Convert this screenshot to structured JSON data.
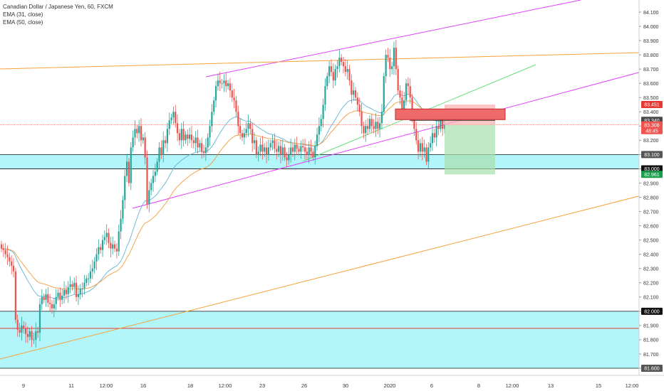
{
  "legend": {
    "symbol": "Canadian Dollar / Japanese Yen, 60, FXCM",
    "ema_fast": "EMA (31, close)",
    "ema_slow": "EMA (50, close)"
  },
  "chart_data": {
    "type": "candlestick",
    "ylim": [
      81.6,
      84.15
    ],
    "y_ticks": [
      "84.100",
      "84.000",
      "83.900",
      "83.800",
      "83.700",
      "83.600",
      "83.500",
      "83.400",
      "83.300",
      "83.200",
      "83.100",
      "83.000",
      "82.900",
      "82.800",
      "82.700",
      "82.600",
      "82.500",
      "82.400",
      "82.300",
      "82.200",
      "82.100",
      "82.000",
      "81.900",
      "81.800",
      "81.700",
      "81.600"
    ],
    "x_ticks": [
      "9",
      "11",
      "12:00",
      "16",
      "18",
      "12:00",
      "23",
      "26",
      "30",
      "2020",
      "6",
      "8",
      "12:00",
      "13",
      "15",
      "12:00"
    ],
    "price_badges": [
      {
        "label": "83.451",
        "value": 83.451,
        "color": "#e53935",
        "text_color": "#ffffff"
      },
      {
        "label": "83.340",
        "value": 83.34,
        "color": "#4a4a4a",
        "text_color": "#ffffff"
      },
      {
        "label": "83.308",
        "value": 83.308,
        "color": "#ef5350",
        "text_color": "#ffffff"
      },
      {
        "label": "48:45",
        "value": 83.268,
        "color": "#ef5350",
        "text_color": "#ffffff"
      },
      {
        "label": "83.100",
        "value": 83.1,
        "color": "#555555",
        "text_color": "#ffffff"
      },
      {
        "label": "83.000",
        "value": 83.0,
        "color": "#111111",
        "text_color": "#ffffff"
      },
      {
        "label": "82.961",
        "value": 82.961,
        "color": "#1b9e4b",
        "text_color": "#ffffff"
      },
      {
        "label": "82.000",
        "value": 82.0,
        "color": "#111111",
        "text_color": "#ffffff"
      },
      {
        "label": "81.600",
        "value": 81.6,
        "color": "#555555",
        "text_color": "#ffffff"
      }
    ],
    "zones": [
      {
        "from": 83.0,
        "to": 83.1,
        "color": "#b2f5fb"
      },
      {
        "from": 81.6,
        "to": 82.0,
        "color": "#b2f5fb"
      }
    ],
    "colors": {
      "up": "#26a69a",
      "down": "#ef5350",
      "ema_fast": "#5fb4d6",
      "ema_slow": "#f59b3c",
      "channel": "#e040fb",
      "orange_line": "#f7a23b",
      "green_line": "#66e07a"
    },
    "candle_closes": [
      82.44,
      82.43,
      82.4,
      82.38,
      82.35,
      82.32,
      82.28,
      81.94,
      81.87,
      81.85,
      81.9,
      81.88,
      81.84,
      81.82,
      81.86,
      81.8,
      81.8,
      81.86,
      81.85,
      82.05,
      82.1,
      82.08,
      82.12,
      82.06,
      82.05,
      82.02,
      82.05,
      82.1,
      82.13,
      82.08,
      82.11,
      82.15,
      82.12,
      82.17,
      82.19,
      82.17,
      82.2,
      82.1,
      82.12,
      82.16,
      82.16,
      82.2,
      82.23,
      82.23,
      82.28,
      82.3,
      82.35,
      82.4,
      82.45,
      82.43,
      82.5,
      82.52,
      82.55,
      82.48,
      82.44,
      82.47,
      82.44,
      82.42,
      82.56,
      82.65,
      82.78,
      82.95,
      83.05,
      82.9,
      83.15,
      83.22,
      83.28,
      83.25,
      83.3,
      83.2,
      83.22,
      83.08,
      82.75,
      82.85,
      82.9,
      82.95,
      82.98,
      83.05,
      83.15,
      83.1,
      83.2,
      83.18,
      83.28,
      83.34,
      83.36,
      83.4,
      83.32,
      83.25,
      83.2,
      83.28,
      83.2,
      83.24,
      83.21,
      83.24,
      83.2,
      83.18,
      83.22,
      83.15,
      83.18,
      83.12,
      83.11,
      83.15,
      83.22,
      83.3,
      83.4,
      83.48,
      83.58,
      83.62,
      83.6,
      83.6,
      83.62,
      83.58,
      83.6,
      83.55,
      83.5,
      83.48,
      83.4,
      83.3,
      83.25,
      83.22,
      83.25,
      83.28,
      83.32,
      83.28,
      83.18,
      83.2,
      83.1,
      83.12,
      83.17,
      83.12,
      83.15,
      83.1,
      83.15,
      83.18,
      83.2,
      83.14,
      83.12,
      83.16,
      83.1,
      83.15,
      83.08,
      83.06,
      83.1,
      83.15,
      83.12,
      83.17,
      83.14,
      83.12,
      83.16,
      83.15,
      83.12,
      83.1,
      83.15,
      83.12,
      83.08,
      83.16,
      83.24,
      83.3,
      83.35,
      83.45,
      83.58,
      83.65,
      83.72,
      83.68,
      83.62,
      83.7,
      83.72,
      83.78,
      83.75,
      83.72,
      83.68,
      83.7,
      83.62,
      83.52,
      83.55,
      83.5,
      83.45,
      83.4,
      83.3,
      83.25,
      83.3,
      83.28,
      83.35,
      83.3,
      83.28,
      83.33,
      83.28,
      83.32,
      83.4,
      83.65,
      83.8,
      83.78,
      83.7,
      83.72,
      83.85,
      83.7,
      83.55,
      83.5,
      83.42,
      83.48,
      83.6,
      83.58,
      83.5,
      83.35,
      83.28,
      83.2,
      83.12,
      83.18,
      83.12,
      83.15,
      83.05,
      83.15,
      83.18,
      83.25,
      83.22,
      83.3,
      83.28,
      83.35,
      83.28,
      83.308
    ]
  }
}
